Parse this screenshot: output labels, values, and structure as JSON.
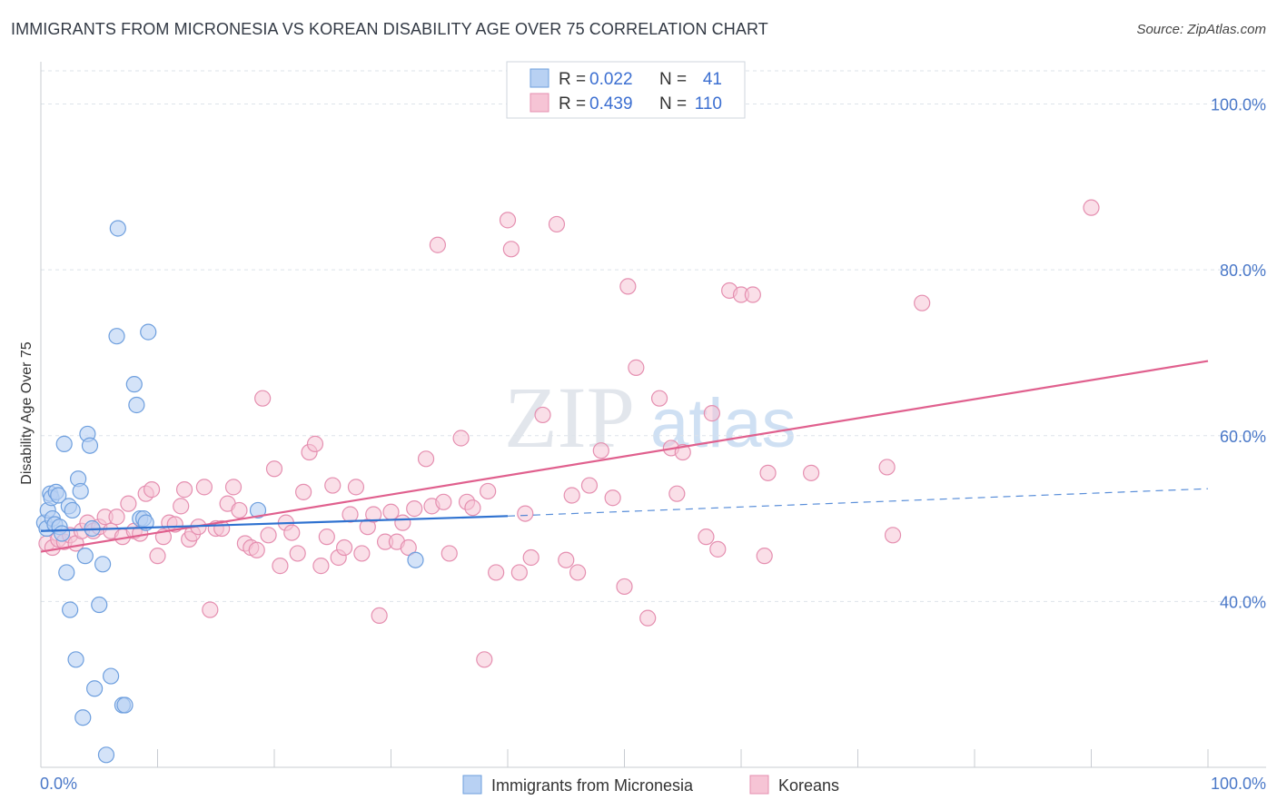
{
  "header": {
    "title": "IMMIGRANTS FROM MICRONESIA VS KOREAN DISABILITY AGE OVER 75 CORRELATION CHART",
    "source": "Source: ZipAtlas.com"
  },
  "watermark": {
    "zip": "ZIP",
    "atlas": "atlas"
  },
  "legend": {
    "series1": {
      "r_label": "R =",
      "r_value": "0.022",
      "n_label": "N =",
      "n_value": "41"
    },
    "series2": {
      "r_label": "R =",
      "r_value": "0.439",
      "n_label": "N =",
      "n_value": "110"
    }
  },
  "colors": {
    "blue_fill": "#b8d1f3",
    "blue_stroke": "#6e9fde",
    "blue_line": "#2f72d0",
    "pink_fill": "#f6c4d5",
    "pink_stroke": "#e58fb0",
    "pink_line": "#e0608e",
    "grid": "#dde3ea",
    "tick_text": "#4a78c8"
  },
  "chart_data": {
    "type": "scatter",
    "title": "IMMIGRANTS FROM MICRONESIA VS KOREAN DISABILITY AGE OVER 75 CORRELATION CHART",
    "xlabel": "",
    "ylabel": "Disability Age Over 75",
    "xlim": [
      0,
      100
    ],
    "ylim": [
      20,
      104
    ],
    "x_tick_labels": [
      "0.0%",
      "100.0%"
    ],
    "y_ticks": [
      40,
      60,
      80,
      100
    ],
    "y_tick_labels": [
      "40.0%",
      "60.0%",
      "80.0%",
      "100.0%"
    ],
    "grid": true,
    "legend_position": "top-center",
    "bottom_legend": [
      "Immigrants from Micronesia",
      "Koreans"
    ],
    "series": [
      {
        "name": "Immigrants from Micronesia",
        "color": "#6e9fde",
        "R": 0.022,
        "N": 41,
        "trend": {
          "x0": 0,
          "y0": 48.5,
          "x1": 40,
          "y1": 50.3,
          "dashed_to_x": 100,
          "dashed_to_y": 53.6
        },
        "points": [
          [
            0.3,
            49.5
          ],
          [
            0.5,
            48.8
          ],
          [
            0.6,
            51
          ],
          [
            0.8,
            53
          ],
          [
            0.9,
            52.5
          ],
          [
            1,
            50
          ],
          [
            1.2,
            49.3
          ],
          [
            1.3,
            53.2
          ],
          [
            1.5,
            52.8
          ],
          [
            1.6,
            49
          ],
          [
            1.8,
            48.2
          ],
          [
            2,
            59
          ],
          [
            2.2,
            43.5
          ],
          [
            2.4,
            51.5
          ],
          [
            2.5,
            39
          ],
          [
            2.7,
            51
          ],
          [
            3,
            33
          ],
          [
            3.2,
            54.8
          ],
          [
            3.4,
            53.3
          ],
          [
            3.6,
            26
          ],
          [
            3.8,
            45.5
          ],
          [
            4,
            60.2
          ],
          [
            4.2,
            58.8
          ],
          [
            4.4,
            48.8
          ],
          [
            4.6,
            29.5
          ],
          [
            5,
            39.6
          ],
          [
            5.3,
            44.5
          ],
          [
            5.6,
            21.5
          ],
          [
            6,
            31
          ],
          [
            6.5,
            72
          ],
          [
            6.6,
            85
          ],
          [
            7,
            27.5
          ],
          [
            7.2,
            27.5
          ],
          [
            8,
            66.2
          ],
          [
            8.2,
            63.7
          ],
          [
            8.5,
            50
          ],
          [
            8.8,
            50
          ],
          [
            9,
            49.5
          ],
          [
            9.2,
            72.5
          ],
          [
            18.6,
            51
          ],
          [
            32.1,
            45
          ]
        ]
      },
      {
        "name": "Koreans",
        "color": "#e58fb0",
        "R": 0.439,
        "N": 110,
        "trend": {
          "x0": 0,
          "y0": 46,
          "x1": 100,
          "y1": 69
        },
        "points": [
          [
            0.5,
            47
          ],
          [
            1,
            46.5
          ],
          [
            1.5,
            47.5
          ],
          [
            2,
            47.2
          ],
          [
            2.5,
            48
          ],
          [
            3,
            47
          ],
          [
            3.5,
            48.5
          ],
          [
            4,
            49.5
          ],
          [
            4.5,
            48.5
          ],
          [
            5,
            49
          ],
          [
            5.5,
            50.2
          ],
          [
            6,
            48.5
          ],
          [
            6.5,
            50.2
          ],
          [
            7,
            47.8
          ],
          [
            7.5,
            51.8
          ],
          [
            8,
            48.5
          ],
          [
            8.5,
            48.2
          ],
          [
            9,
            53
          ],
          [
            9.5,
            53.5
          ],
          [
            10,
            45.5
          ],
          [
            10.5,
            47.8
          ],
          [
            11,
            49.5
          ],
          [
            11.5,
            49.3
          ],
          [
            12,
            51.5
          ],
          [
            12.3,
            53.5
          ],
          [
            12.7,
            47.5
          ],
          [
            13,
            48.2
          ],
          [
            13.5,
            49
          ],
          [
            14,
            53.8
          ],
          [
            14.5,
            39
          ],
          [
            15,
            48.8
          ],
          [
            15.5,
            48.8
          ],
          [
            16,
            51.8
          ],
          [
            16.5,
            53.8
          ],
          [
            17,
            51
          ],
          [
            17.5,
            47
          ],
          [
            18,
            46.5
          ],
          [
            18.5,
            46.2
          ],
          [
            19,
            64.5
          ],
          [
            19.5,
            48
          ],
          [
            20,
            56
          ],
          [
            20.5,
            44.3
          ],
          [
            21,
            49.5
          ],
          [
            21.5,
            48.3
          ],
          [
            22,
            45.8
          ],
          [
            22.5,
            53.2
          ],
          [
            23,
            58
          ],
          [
            23.5,
            59
          ],
          [
            24,
            44.3
          ],
          [
            24.5,
            47.8
          ],
          [
            25,
            54
          ],
          [
            25.5,
            45.3
          ],
          [
            26,
            46.5
          ],
          [
            26.5,
            50.5
          ],
          [
            27,
            53.8
          ],
          [
            27.5,
            45.8
          ],
          [
            28,
            49
          ],
          [
            28.5,
            50.5
          ],
          [
            29,
            38.3
          ],
          [
            29.5,
            47.2
          ],
          [
            30,
            50.8
          ],
          [
            30.5,
            47.2
          ],
          [
            31,
            49.5
          ],
          [
            31.5,
            46.5
          ],
          [
            32,
            51.2
          ],
          [
            33,
            57.2
          ],
          [
            33.5,
            51.5
          ],
          [
            34,
            83
          ],
          [
            34.5,
            52
          ],
          [
            35,
            45.8
          ],
          [
            36,
            59.7
          ],
          [
            36.5,
            52
          ],
          [
            37,
            51.3
          ],
          [
            38,
            33
          ],
          [
            38.3,
            53.3
          ],
          [
            39,
            43.5
          ],
          [
            40,
            86
          ],
          [
            40.3,
            82.5
          ],
          [
            41,
            43.5
          ],
          [
            41.5,
            50.6
          ],
          [
            42,
            45.3
          ],
          [
            43,
            62.5
          ],
          [
            44.2,
            85.5
          ],
          [
            45,
            45
          ],
          [
            45.5,
            52.8
          ],
          [
            46,
            43.5
          ],
          [
            47,
            54
          ],
          [
            48,
            58.2
          ],
          [
            49,
            52.5
          ],
          [
            50,
            41.8
          ],
          [
            50.3,
            78
          ],
          [
            51,
            68.2
          ],
          [
            52,
            38
          ],
          [
            53,
            64.5
          ],
          [
            54,
            58.5
          ],
          [
            54.5,
            53
          ],
          [
            55,
            58
          ],
          [
            57,
            47.8
          ],
          [
            57.5,
            62.7
          ],
          [
            58,
            46.3
          ],
          [
            59,
            77.5
          ],
          [
            60,
            77
          ],
          [
            61,
            77
          ],
          [
            62,
            45.5
          ],
          [
            62.3,
            55.5
          ],
          [
            66,
            55.5
          ],
          [
            72.5,
            56.2
          ],
          [
            73,
            48
          ],
          [
            75.5,
            76
          ],
          [
            90,
            87.5
          ]
        ]
      }
    ]
  }
}
